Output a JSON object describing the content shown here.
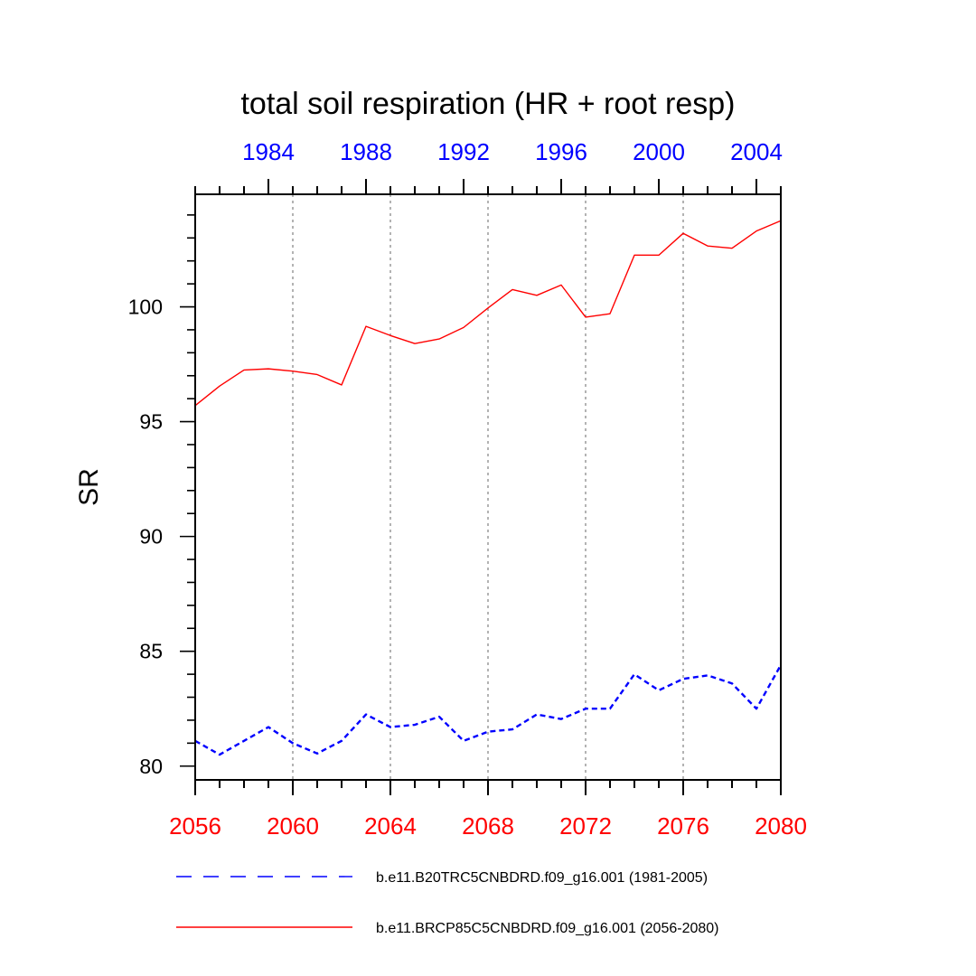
{
  "chart_data": {
    "type": "line",
    "title": "total soil respiration (HR + root resp)",
    "ylabel": "SR",
    "xlabel": "",
    "ylim": [
      79.4,
      104.9
    ],
    "yticks": [
      80,
      85,
      90,
      95,
      100
    ],
    "y_minor_step": 1,
    "x_bottom": {
      "range": [
        2056,
        2080
      ],
      "ticks": [
        2056,
        2060,
        2064,
        2068,
        2072,
        2076,
        2080
      ],
      "color": "#ff0000"
    },
    "x_top": {
      "range": [
        1981,
        2005
      ],
      "ticks": [
        1984,
        1988,
        1992,
        1996,
        2000,
        2004
      ],
      "color": "#0000ff"
    },
    "grid": "vertical dotted at major ticks",
    "series": [
      {
        "name": "b.e11.B20TRC5CNBDRD.f09_g16.001 (1981-2005)",
        "axis": "top",
        "color": "#0000ff",
        "dash": "dashed",
        "x": [
          1981,
          1982,
          1983,
          1984,
          1985,
          1986,
          1987,
          1988,
          1989,
          1990,
          1991,
          1992,
          1993,
          1994,
          1995,
          1996,
          1997,
          1998,
          1999,
          2000,
          2001,
          2002,
          2003,
          2004,
          2005
        ],
        "values": [
          81.1,
          80.5,
          81.1,
          81.7,
          81.0,
          80.55,
          81.1,
          82.25,
          81.7,
          81.8,
          82.15,
          81.1,
          81.5,
          81.6,
          82.25,
          82.05,
          82.5,
          82.5,
          84.0,
          83.3,
          83.8,
          83.95,
          83.6,
          82.5,
          84.4
        ]
      },
      {
        "name": "b.e11.BRCP85C5CNBDRD.f09_g16.001 (2056-2080)",
        "axis": "bottom",
        "color": "#ff0000",
        "dash": "solid",
        "x": [
          2056,
          2057,
          2058,
          2059,
          2060,
          2061,
          2062,
          2063,
          2064,
          2065,
          2066,
          2067,
          2068,
          2069,
          2070,
          2071,
          2072,
          2073,
          2074,
          2075,
          2076,
          2077,
          2078,
          2079,
          2080
        ],
        "values": [
          95.7,
          96.55,
          97.25,
          97.3,
          97.2,
          97.05,
          96.6,
          99.15,
          98.75,
          98.4,
          98.6,
          99.1,
          99.95,
          100.75,
          100.5,
          100.95,
          99.55,
          99.7,
          102.25,
          102.25,
          103.2,
          102.65,
          102.55,
          103.3,
          103.75
        ]
      }
    ],
    "legend": {
      "position": "bottom",
      "entries": [
        "b.e11.B20TRC5CNBDRD.f09_g16.001 (1981-2005)",
        "b.e11.BRCP85C5CNBDRD.f09_g16.001 (2056-2080)"
      ]
    }
  }
}
